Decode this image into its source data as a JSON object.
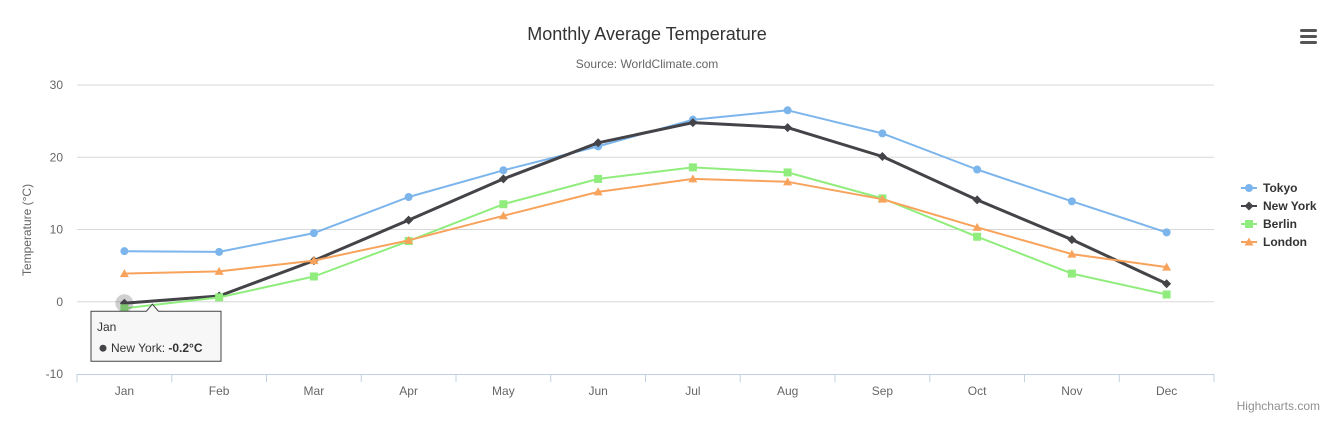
{
  "chart_data": {
    "type": "line",
    "title": "Monthly Average Temperature",
    "subtitle": "Source: WorldClimate.com",
    "ylabel": "Temperature (°C)",
    "ylim": [
      -10,
      30
    ],
    "yticks": [
      -10,
      0,
      10,
      20,
      30
    ],
    "categories": [
      "Jan",
      "Feb",
      "Mar",
      "Apr",
      "May",
      "Jun",
      "Jul",
      "Aug",
      "Sep",
      "Oct",
      "Nov",
      "Dec"
    ],
    "grid": true,
    "legend": "right",
    "series": [
      {
        "name": "Tokyo",
        "color": "#7cb5ec",
        "marker": "circle",
        "values": [
          7.0,
          6.9,
          9.5,
          14.5,
          18.2,
          21.5,
          25.2,
          26.5,
          23.3,
          18.3,
          13.9,
          9.6
        ]
      },
      {
        "name": "New York",
        "color": "#434348",
        "marker": "diamond",
        "values": [
          -0.2,
          0.8,
          5.7,
          11.3,
          17.0,
          22.0,
          24.8,
          24.1,
          20.1,
          14.1,
          8.6,
          2.5
        ]
      },
      {
        "name": "Berlin",
        "color": "#90ed7d",
        "marker": "square",
        "values": [
          -0.9,
          0.6,
          3.5,
          8.4,
          13.5,
          17.0,
          18.6,
          17.9,
          14.3,
          9.0,
          3.9,
          1.0
        ]
      },
      {
        "name": "London",
        "color": "#f7a35c",
        "marker": "triangle",
        "values": [
          3.9,
          4.2,
          5.7,
          8.5,
          11.9,
          15.2,
          17.0,
          16.6,
          14.2,
          10.3,
          6.6,
          4.8
        ]
      }
    ],
    "tooltip": {
      "header": "Jan",
      "series": "New York",
      "label": "New York: ",
      "value": "-0.2°C"
    },
    "credits": "Highcharts.com",
    "menu_icon": "hamburger-menu-icon"
  }
}
